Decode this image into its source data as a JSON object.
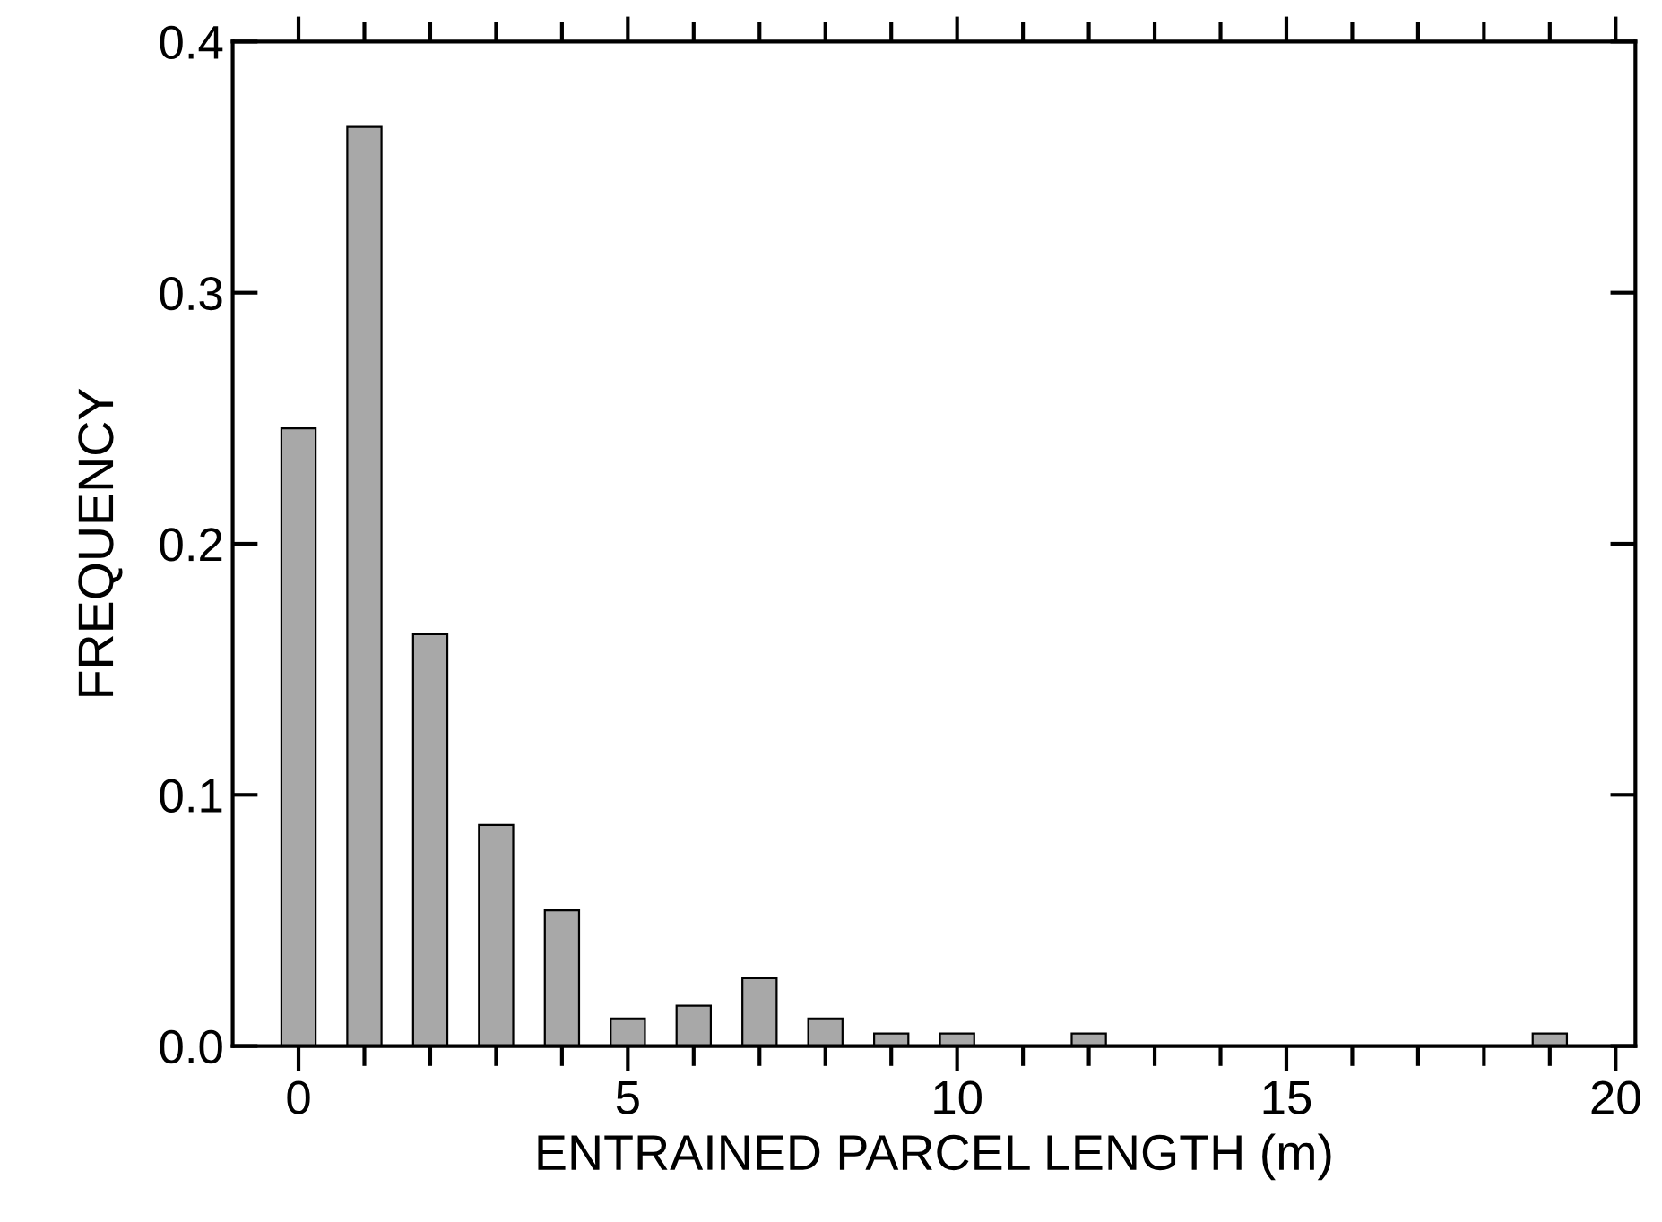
{
  "chart_data": {
    "type": "bar",
    "xlabel": "ENTRAINED PARCEL LENGTH (m)",
    "ylabel": "FREQUENCY",
    "x": [
      0,
      1,
      2,
      3,
      4,
      5,
      6,
      7,
      8,
      9,
      10,
      12,
      19
    ],
    "values": [
      0.246,
      0.366,
      0.164,
      0.088,
      0.054,
      0.011,
      0.016,
      0.027,
      0.011,
      0.005,
      0.005,
      0.005,
      0.005
    ],
    "color": "#a8a8a8",
    "xlim": [
      -1,
      20.3
    ],
    "ylim": [
      0,
      0.4
    ],
    "xticks": [
      0,
      {
        "value": 1,
        "label": null
      },
      {
        "value": 2,
        "label": null
      },
      {
        "value": 3,
        "label": null
      },
      {
        "value": 4,
        "label": null
      },
      5,
      {
        "value": 6,
        "label": null
      },
      {
        "value": 7,
        "label": null
      },
      {
        "value": 8,
        "label": null
      },
      {
        "value": 9,
        "label": null
      },
      10,
      {
        "value": 11,
        "label": null
      },
      {
        "value": 12,
        "label": null
      },
      {
        "value": 13,
        "label": null
      },
      {
        "value": 14,
        "label": null
      },
      15,
      {
        "value": 16,
        "label": null
      },
      {
        "value": 17,
        "label": null
      },
      {
        "value": 18,
        "label": null
      },
      {
        "value": 19,
        "label": null
      },
      20
    ],
    "yticks": [
      {
        "value": 0,
        "label": "0.0"
      },
      0.1,
      0.2,
      0.3,
      {
        "value": 0.4,
        "label": "0.4"
      }
    ],
    "grid": false
  }
}
